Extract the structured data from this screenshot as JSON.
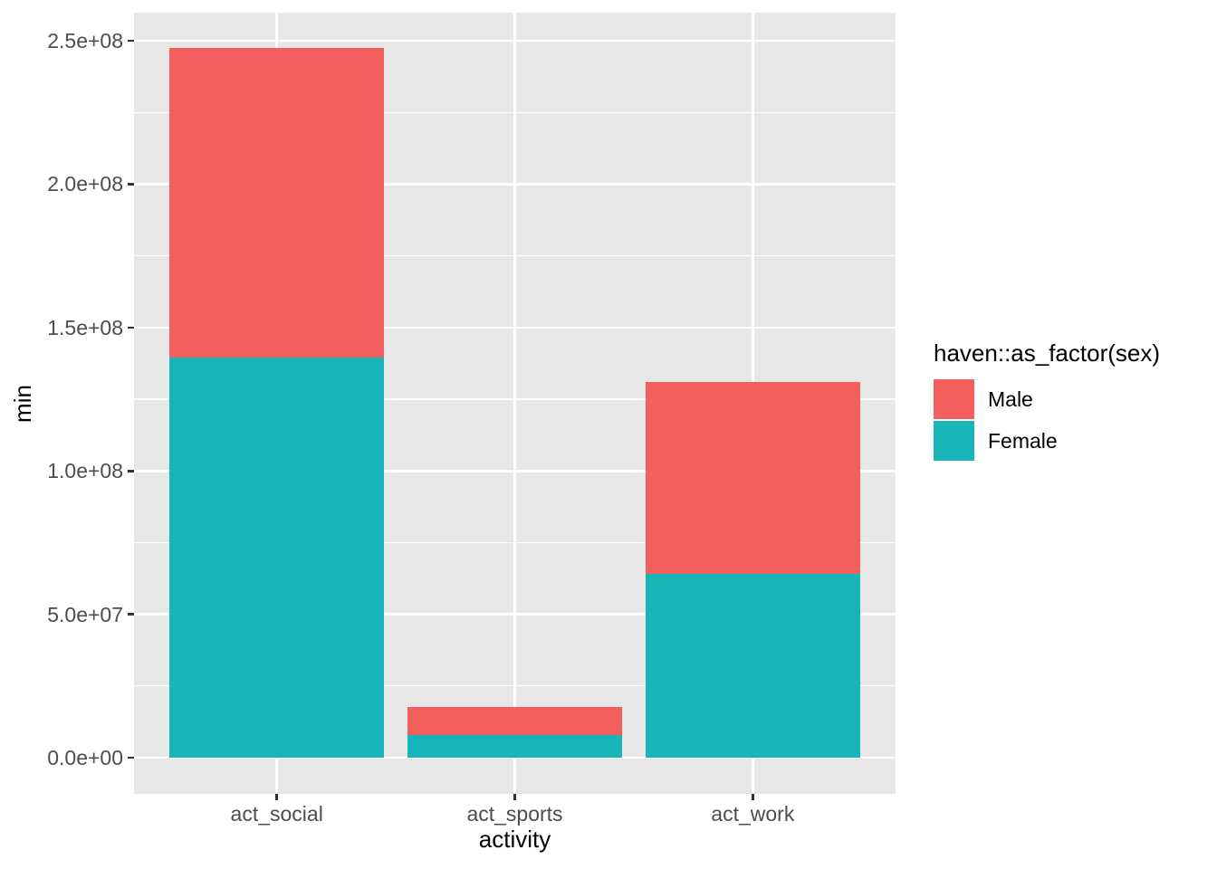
{
  "chart_data": {
    "type": "bar",
    "subtype": "stacked",
    "title": "",
    "xlabel": "activity",
    "ylabel": "min",
    "categories": [
      "act_social",
      "act_sports",
      "act_work"
    ],
    "series": [
      {
        "name": "Female",
        "color": "#17B4B8",
        "values": [
          139500000,
          7900000,
          64100000
        ]
      },
      {
        "name": "Male",
        "color": "#F35F5C",
        "values": [
          108000000,
          9900000,
          66900000
        ]
      }
    ],
    "stack_order_bottom_to_top": [
      "Female",
      "Male"
    ],
    "totals": [
      247500000,
      17800000,
      131000000
    ],
    "y_ticks": [
      {
        "label": "0.0e+00",
        "value": 0
      },
      {
        "label": "5.0e+07",
        "value": 50000000
      },
      {
        "label": "1.0e+08",
        "value": 100000000
      },
      {
        "label": "1.5e+08",
        "value": 150000000
      },
      {
        "label": "2.0e+08",
        "value": 200000000
      },
      {
        "label": "2.5e+08",
        "value": 250000000
      }
    ],
    "ylim": [
      -12600000,
      259800000
    ],
    "grid": true,
    "legend_position": "right",
    "legend": {
      "title": "haven::as_factor(sex)",
      "entries": [
        {
          "label": "Male",
          "color": "#F35F5C"
        },
        {
          "label": "Female",
          "color": "#17B4B8"
        }
      ]
    },
    "colors": {
      "panel_background": "#E7E7E7",
      "grid": "#FFFFFF",
      "tick_text": "#4D4D4D",
      "title_text": "#000000",
      "tick_mark": "#333333"
    }
  }
}
